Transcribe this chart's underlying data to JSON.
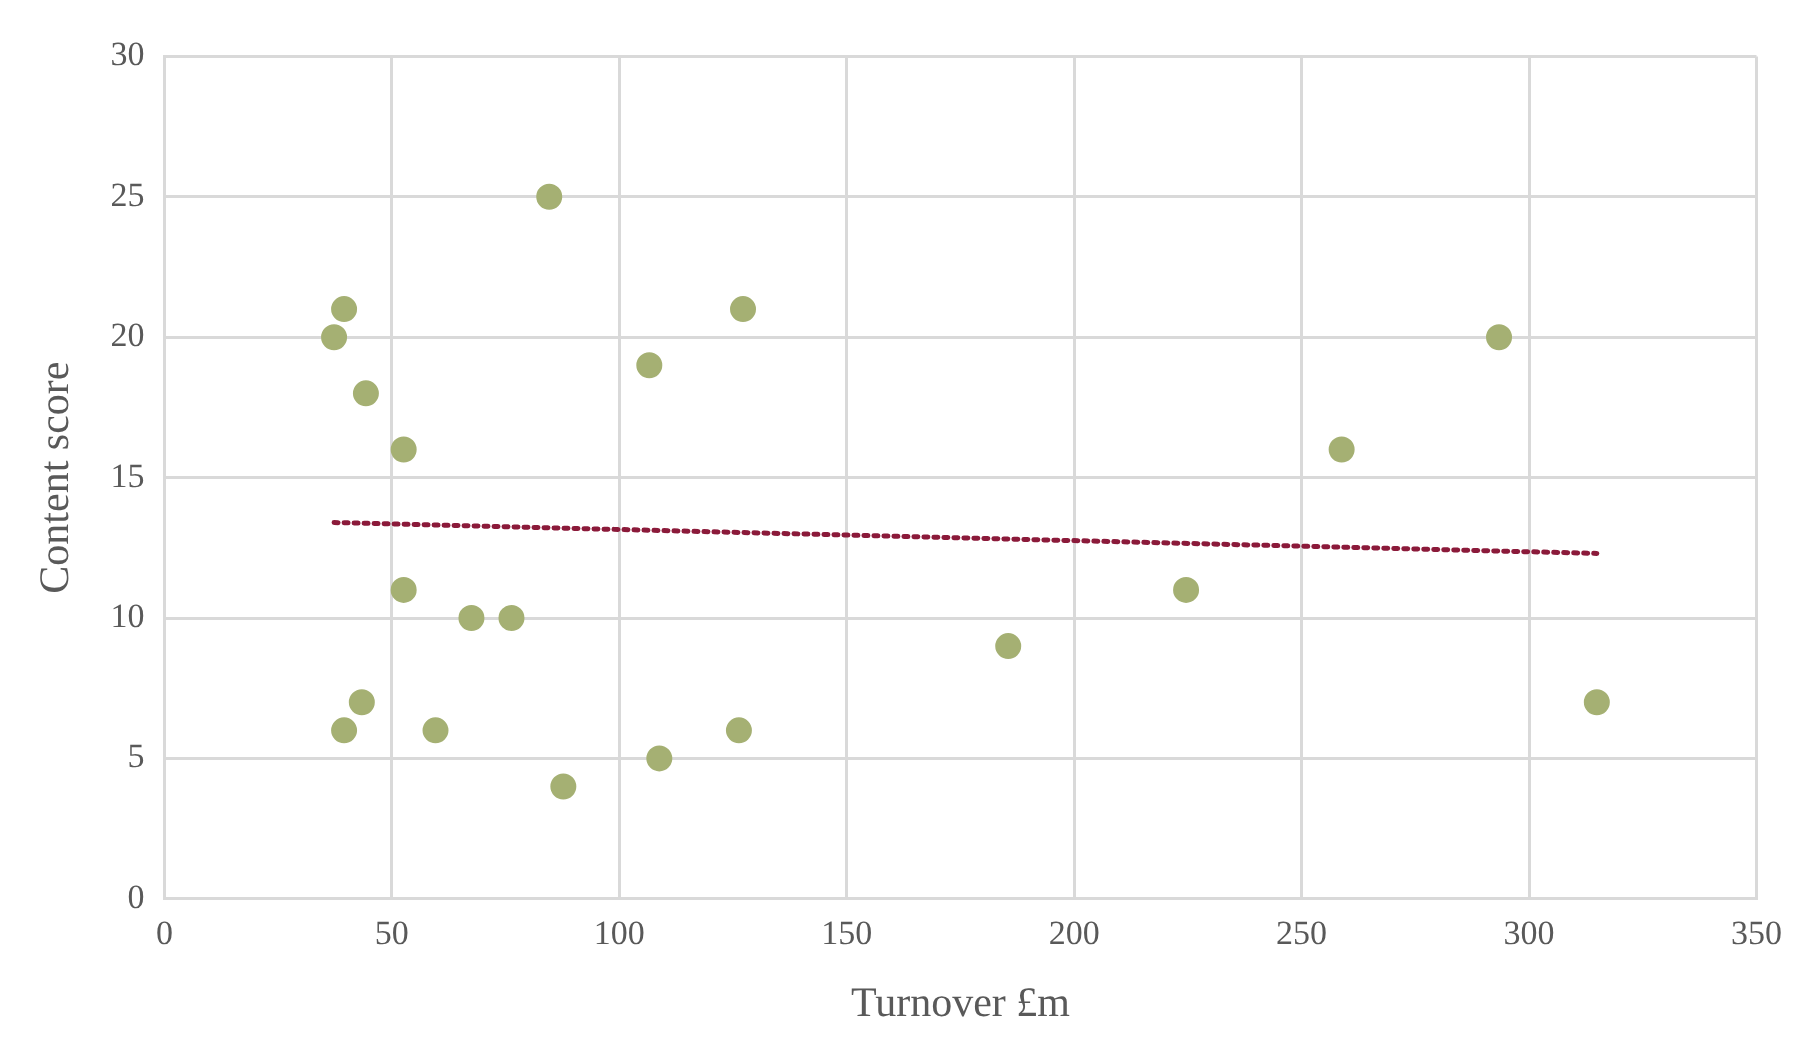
{
  "chart_data": {
    "type": "scatter",
    "xlabel": "Turnover £m",
    "ylabel": "Content score",
    "xlim": [
      0,
      350
    ],
    "xticks": [
      0,
      50,
      100,
      150,
      200,
      250,
      300,
      350
    ],
    "ylim": [
      0,
      30
    ],
    "yticks": [
      0,
      5,
      10,
      15,
      20,
      25,
      30
    ],
    "grid": true,
    "legend": false,
    "marker": "circle",
    "series": [
      {
        "type": "scatter",
        "color": "#a5b073",
        "x": [
          37.3,
          39.5,
          44.3,
          52.6,
          52.6,
          43.4,
          39.5,
          59.6,
          67.5,
          76.3,
          84.6,
          87.7,
          106.6,
          108.8,
          127.2,
          126.3,
          185.5,
          224.6,
          258.8,
          293.4,
          314.9
        ],
        "values": [
          20,
          21,
          18,
          16,
          11,
          7,
          6,
          6,
          10,
          10,
          25,
          4,
          19,
          5,
          21,
          6,
          9,
          11,
          16,
          20,
          7
        ]
      },
      {
        "type": "line",
        "color": "#8b1a3a",
        "line_style": "dotted",
        "marker": "none",
        "x": [
          37.3,
          314.9
        ],
        "values": [
          13.4,
          12.3
        ]
      }
    ]
  }
}
